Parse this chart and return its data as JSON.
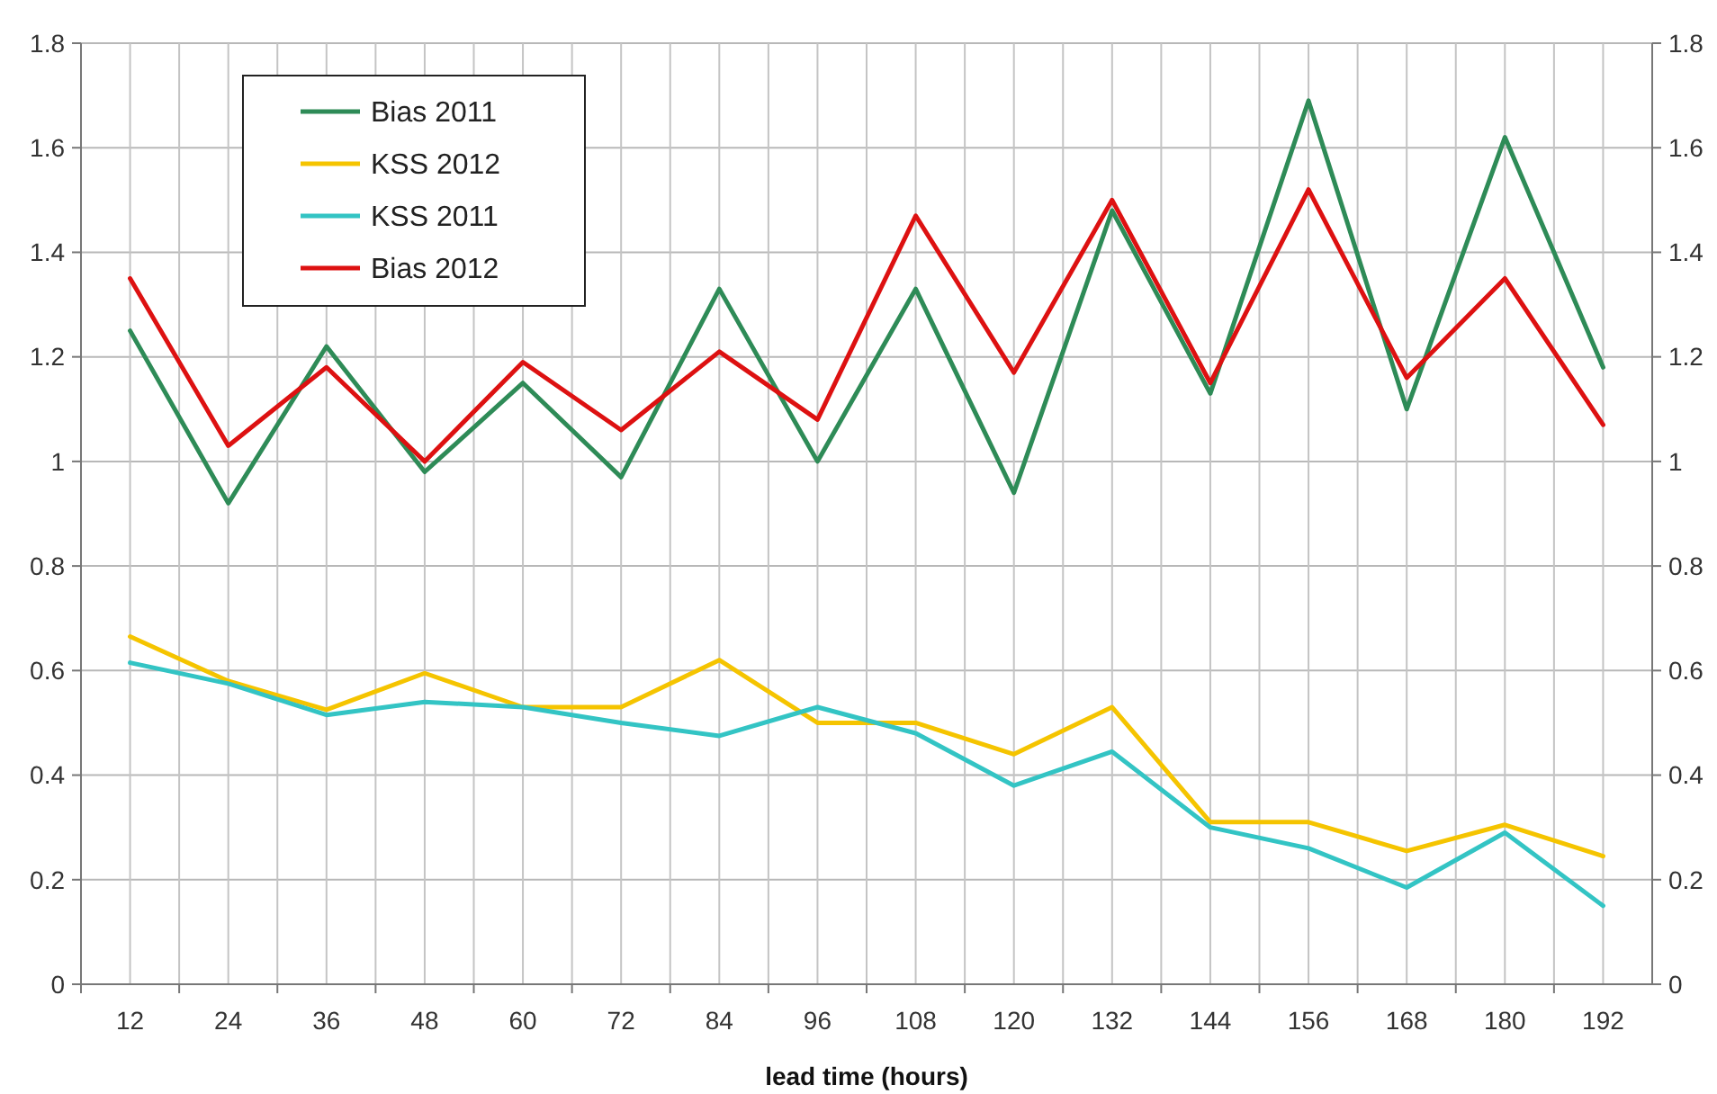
{
  "chart_data": {
    "type": "line",
    "xlabel": "lead time (hours)",
    "categories": [
      "12",
      "24",
      "36",
      "48",
      "60",
      "72",
      "84",
      "96",
      "108",
      "120",
      "132",
      "144",
      "156",
      "168",
      "180",
      "192"
    ],
    "series": [
      {
        "name": "Bias 2011",
        "color": "#2e8b57",
        "values": [
          1.25,
          0.92,
          1.22,
          0.98,
          1.15,
          0.97,
          1.33,
          1.0,
          1.33,
          0.94,
          1.48,
          1.13,
          1.69,
          1.1,
          1.62,
          1.18
        ]
      },
      {
        "name": "KSS 2012",
        "color": "#f5c400",
        "values": [
          0.665,
          0.58,
          0.525,
          0.595,
          0.53,
          0.53,
          0.62,
          0.5,
          0.5,
          0.44,
          0.53,
          0.31,
          0.31,
          0.255,
          0.305,
          0.245
        ]
      },
      {
        "name": "KSS 2011",
        "color": "#33c4c4",
        "values": [
          0.615,
          0.575,
          0.515,
          0.54,
          0.53,
          0.5,
          0.475,
          0.53,
          0.48,
          0.38,
          0.445,
          0.3,
          0.26,
          0.185,
          0.29,
          0.15
        ]
      },
      {
        "name": "Bias 2012",
        "color": "#dd1111",
        "values": [
          1.35,
          1.03,
          1.18,
          1.0,
          1.19,
          1.06,
          1.21,
          1.08,
          1.47,
          1.17,
          1.5,
          1.15,
          1.52,
          1.16,
          1.35,
          1.07
        ]
      }
    ],
    "ylim": [
      0,
      1.8
    ],
    "yticks": [
      0,
      0.2,
      0.4,
      0.6,
      0.8,
      1,
      1.2,
      1.4,
      1.6,
      1.8
    ],
    "y2lim": [
      0,
      1.8
    ],
    "y2ticks": [
      0,
      0.2,
      0.4,
      0.6,
      0.8,
      1,
      1.2,
      1.4,
      1.6,
      1.8
    ],
    "grid": true,
    "legend": "top left",
    "marker": "none",
    "line_style": "solid"
  }
}
